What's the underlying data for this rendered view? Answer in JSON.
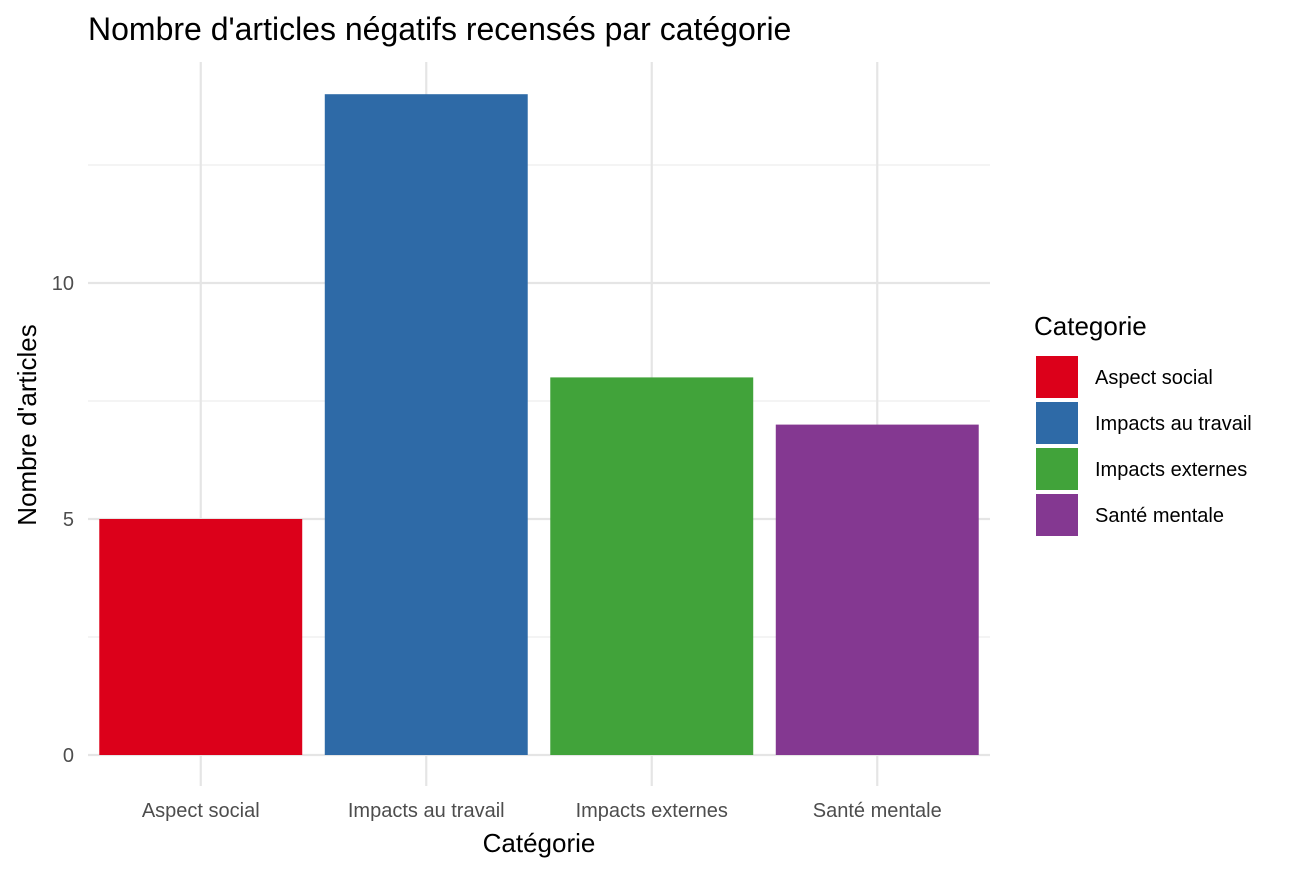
{
  "chart_data": {
    "type": "bar",
    "title": "Nombre d'articles négatifs recensés par catégorie",
    "xlabel": "Catégorie",
    "ylabel": "Nombre d'articles",
    "categories": [
      "Aspect social",
      "Impacts au travail",
      "Impacts externes",
      "Santé mentale"
    ],
    "values": [
      5,
      14,
      8,
      7
    ],
    "colors": [
      "#dc001a",
      "#2e6aa7",
      "#41a33a",
      "#843891"
    ],
    "ylim": [
      0,
      14.7
    ],
    "yticks": [
      0,
      5,
      10
    ],
    "ytick_labels": [
      "0",
      "5",
      "10"
    ],
    "grid": true,
    "legend": {
      "title": "Categorie",
      "position": "right",
      "entries": [
        "Aspect social",
        "Impacts au travail",
        "Impacts externes",
        "Santé mentale"
      ]
    }
  }
}
